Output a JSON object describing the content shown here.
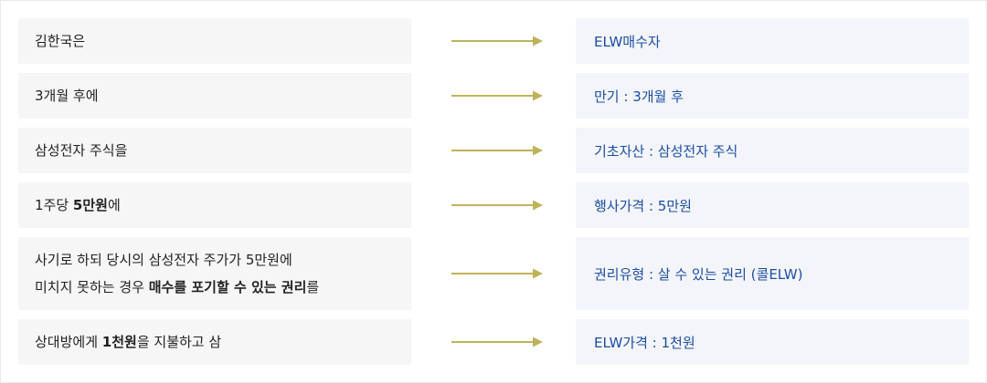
{
  "colors": {
    "left_bg": "#f6f6f6",
    "right_bg": "#f3f5fa",
    "arrow": "#bfb35a",
    "right_text": "#1c4da1",
    "left_text": "#222222"
  },
  "icons": {
    "arrow": "right-arrow-icon"
  },
  "rows": [
    {
      "left": {
        "lines": [
          [
            {
              "text": "김한국은",
              "bold": false
            }
          ]
        ]
      },
      "right": "ELW매수자"
    },
    {
      "left": {
        "lines": [
          [
            {
              "text": "3개월 후에",
              "bold": false
            }
          ]
        ]
      },
      "right": "만기 : 3개월 후"
    },
    {
      "left": {
        "lines": [
          [
            {
              "text": "삼성전자 주식을",
              "bold": false
            }
          ]
        ]
      },
      "right": "기초자산 : 삼성전자 주식"
    },
    {
      "left": {
        "lines": [
          [
            {
              "text": "1주당 ",
              "bold": false
            },
            {
              "text": "5만원",
              "bold": true
            },
            {
              "text": "에",
              "bold": false
            }
          ]
        ]
      },
      "right": "행사가격 : 5만원"
    },
    {
      "left": {
        "lines": [
          [
            {
              "text": "사기로 하되 당시의 삼성전자 주가가 5만원에",
              "bold": false
            }
          ],
          [
            {
              "text": "미치지 못하는 경우 ",
              "bold": false
            },
            {
              "text": "매수를 포기할 수 있는 권리",
              "bold": true
            },
            {
              "text": "를",
              "bold": false
            }
          ]
        ]
      },
      "right": "권리유형 : 살 수 있는 권리 (콜ELW)"
    },
    {
      "left": {
        "lines": [
          [
            {
              "text": "상대방에게 ",
              "bold": false
            },
            {
              "text": "1천원",
              "bold": true
            },
            {
              "text": "을 지불하고 삼",
              "bold": false
            }
          ]
        ]
      },
      "right": "ELW가격 : 1천원"
    }
  ]
}
